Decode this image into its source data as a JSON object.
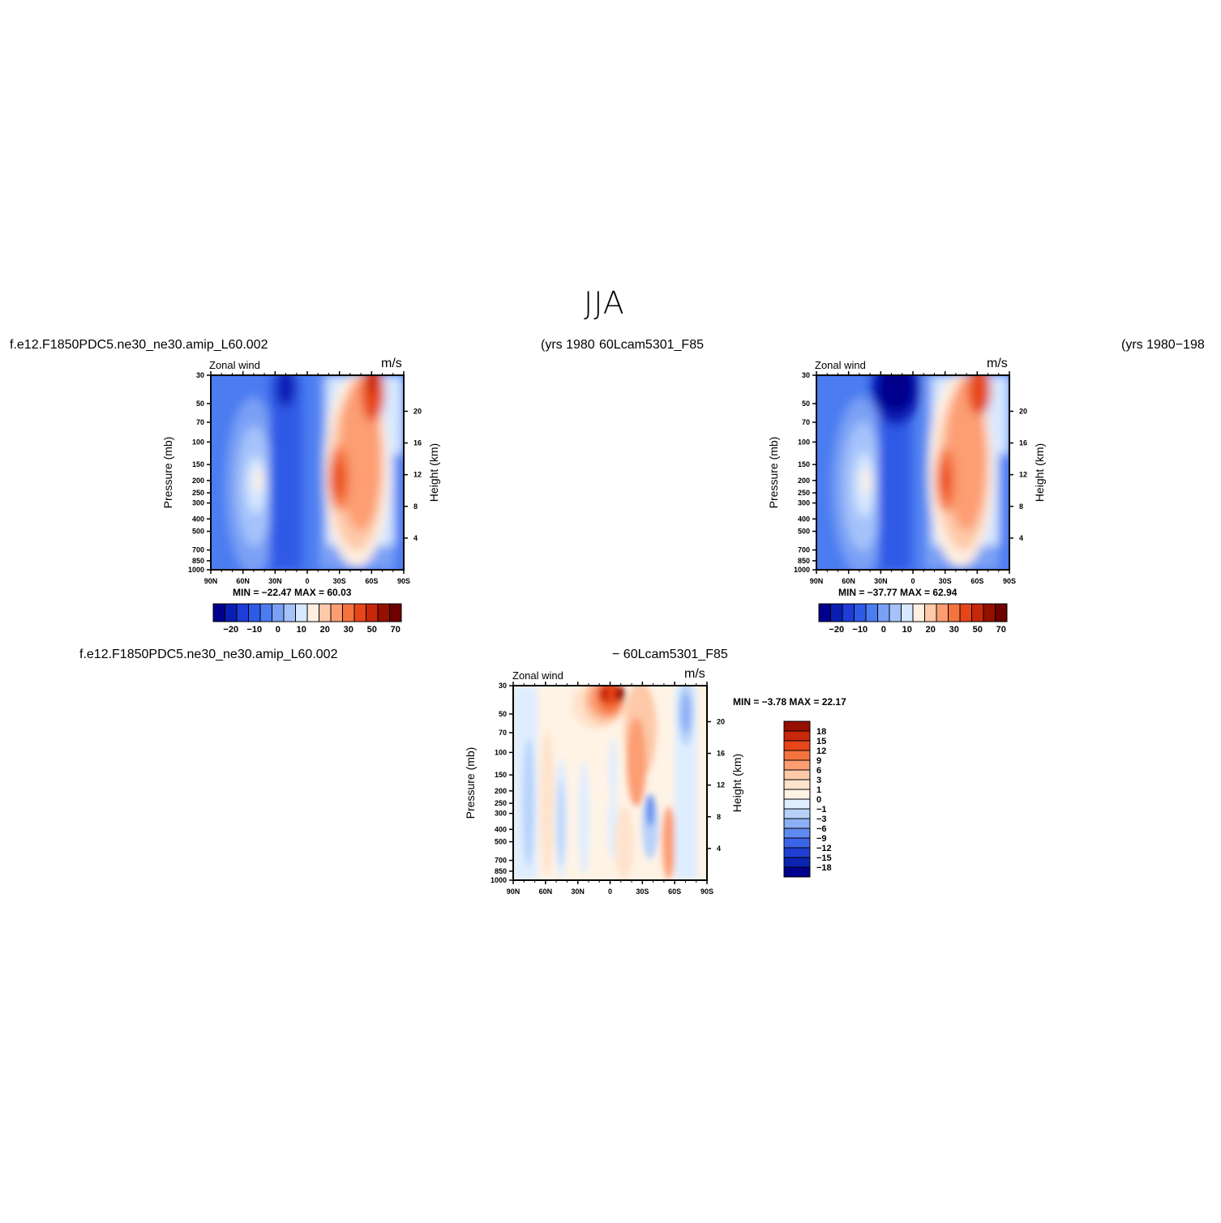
{
  "page_title": "JJA",
  "panel1": {
    "case_left": "f.e12.F1850PDC5.ne30_ne30.amip_L60.002",
    "case_right": "(yrs 1980",
    "var_label": "Zonal wind",
    "units": "m/s",
    "minmax": "MIN =  −22.47    MAX =    60.03"
  },
  "panel2": {
    "case_left": "60Lcam5301_F85",
    "case_right": "(yrs 1980−198",
    "var_label": "Zonal wind",
    "units": "m/s",
    "minmax": "MIN =  −37.77    MAX =    62.94"
  },
  "panel3": {
    "case_left": "f.e12.F1850PDC5.ne30_ne30.amip_L60.002",
    "case_right": "−  60Lcam5301_F85",
    "var_label": "Zonal wind",
    "units": "m/s",
    "minmax": "MIN =   −3.78    MAX =    22.17"
  },
  "axis": {
    "ylabel_left": "Pressure (mb)",
    "ylabel_right": "Height (km)",
    "pressure_ticks": [
      "30",
      "50",
      "70",
      "100",
      "150",
      "200",
      "250",
      "300",
      "400",
      "500",
      "700",
      "850",
      "1000"
    ],
    "height_ticks": [
      "4",
      "8",
      "12",
      "16",
      "20"
    ],
    "lat_ticks": [
      "90N",
      "60N",
      "30N",
      "0",
      "30S",
      "60S",
      "90S"
    ]
  },
  "colorbar_horiz": {
    "labels": [
      "−20",
      "−10",
      "0",
      "10",
      "20",
      "30",
      "50",
      "70"
    ],
    "colors": [
      "#00008c",
      "#0a1eb4",
      "#1e3cd7",
      "#2d5ae6",
      "#4b7cf0",
      "#7aa0f5",
      "#a5c3fa",
      "#d7e8ff",
      "#fff0e1",
      "#fdc9a8",
      "#fc9d72",
      "#f5733f",
      "#e64619",
      "#c8280a",
      "#961000",
      "#6e0000"
    ]
  },
  "colorbar_vert": {
    "labels": [
      "18",
      "15",
      "12",
      "9",
      "6",
      "3",
      "1",
      "0",
      "−1",
      "−3",
      "−6",
      "−9",
      "−12",
      "−15",
      "−18"
    ],
    "colors": [
      "#961000",
      "#c8280a",
      "#e64619",
      "#f5733f",
      "#fc9d72",
      "#fdc9a8",
      "#fee3cc",
      "#fff3e6",
      "#dfeeff",
      "#b7d1fa",
      "#8cb0f5",
      "#5f8aef",
      "#3c64e8",
      "#1f3fd4",
      "#0a23b0",
      "#00008c"
    ]
  },
  "chart_data": [
    {
      "type": "heatmap",
      "title": "Zonal wind",
      "units": "m/s",
      "x_ticks": [
        "90N",
        "60N",
        "30N",
        "0",
        "30S",
        "60S",
        "90S"
      ],
      "y_ticks": [
        "30",
        "50",
        "70",
        "100",
        "150",
        "200",
        "250",
        "300",
        "400",
        "500",
        "700",
        "850",
        "1000"
      ],
      "y2_ticks": [
        "4",
        "8",
        "12",
        "16",
        "20"
      ],
      "ylabel": "Pressure (mb)",
      "y2label": "Height (km)",
      "min": -22.47,
      "max": 60.03,
      "contour_levels": [
        -20,
        -10,
        0,
        10,
        20,
        30,
        50,
        70
      ]
    },
    {
      "type": "heatmap",
      "title": "Zonal wind",
      "units": "m/s",
      "x_ticks": [
        "90N",
        "60N",
        "30N",
        "0",
        "30S",
        "60S",
        "90S"
      ],
      "y_ticks": [
        "30",
        "50",
        "70",
        "100",
        "150",
        "200",
        "250",
        "300",
        "400",
        "500",
        "700",
        "850",
        "1000"
      ],
      "y2_ticks": [
        "4",
        "8",
        "12",
        "16",
        "20"
      ],
      "ylabel": "Pressure (mb)",
      "y2label": "Height (km)",
      "min": -37.77,
      "max": 62.94,
      "contour_levels": [
        -20,
        -10,
        0,
        10,
        20,
        30,
        50,
        70
      ]
    },
    {
      "type": "heatmap",
      "title": "Zonal wind",
      "units": "m/s",
      "x_ticks": [
        "90N",
        "60N",
        "30N",
        "0",
        "30S",
        "60S",
        "90S"
      ],
      "y_ticks": [
        "30",
        "50",
        "70",
        "100",
        "150",
        "200",
        "250",
        "300",
        "400",
        "500",
        "700",
        "850",
        "1000"
      ],
      "y2_ticks": [
        "4",
        "8",
        "12",
        "16",
        "20"
      ],
      "ylabel": "Pressure (mb)",
      "y2label": "Height (km)",
      "min": -3.78,
      "max": 22.17,
      "contour_levels": [
        -18,
        -15,
        -12,
        -9,
        -6,
        -3,
        -1,
        0,
        1,
        3,
        6,
        9,
        12,
        15,
        18
      ]
    }
  ]
}
